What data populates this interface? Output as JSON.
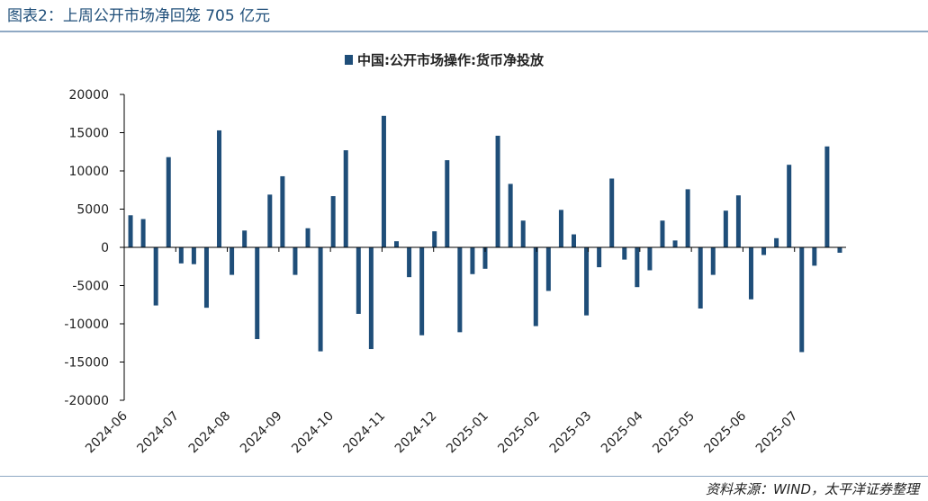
{
  "figure_title": "图表2：上周公开市场净回笼 705 亿元",
  "source_note": "资料来源：WIND，太平洋证券整理",
  "colors": {
    "bar": "#1f4e79",
    "title": "#1f4e79",
    "axis": "#000000"
  },
  "chart_data": {
    "type": "bar",
    "title": "",
    "xlabel": "",
    "ylabel": "",
    "legend": {
      "position": "top-center",
      "entries": [
        "中国:公开市场操作:货币净投放"
      ]
    },
    "series": [
      {
        "name": "中国:公开市场操作:货币净投放",
        "values": [
          4200,
          3700,
          -7600,
          11800,
          -2100,
          -2200,
          -7900,
          15300,
          -3600,
          2200,
          -12000,
          6900,
          9300,
          -3600,
          2500,
          -13600,
          6700,
          12700,
          -8700,
          -13300,
          17200,
          800,
          -3900,
          -11500,
          2100,
          11400,
          -11100,
          -3500,
          -2800,
          14600,
          8300,
          3500,
          -10300,
          -5700,
          4900,
          1700,
          -8900,
          -2600,
          9000,
          -1600,
          -5200,
          -3000,
          3500,
          900,
          7600,
          -8000,
          -3600,
          4800,
          6800,
          -6800,
          -1000,
          1200,
          10800,
          -13700,
          -2400,
          13200,
          -705
        ]
      }
    ],
    "x_ticks": [
      "2024-06",
      "2024-07",
      "2024-08",
      "2024-09",
      "2024-10",
      "2024-11",
      "2024-12",
      "2025-01",
      "2025-02",
      "2025-03",
      "2025-04",
      "2025-05",
      "2025-06",
      "2025-07"
    ],
    "y_ticks": [
      20000,
      15000,
      10000,
      5000,
      0,
      -5000,
      -10000,
      -15000,
      -20000
    ],
    "ylim": [
      -20000,
      20000
    ],
    "grid": false
  }
}
